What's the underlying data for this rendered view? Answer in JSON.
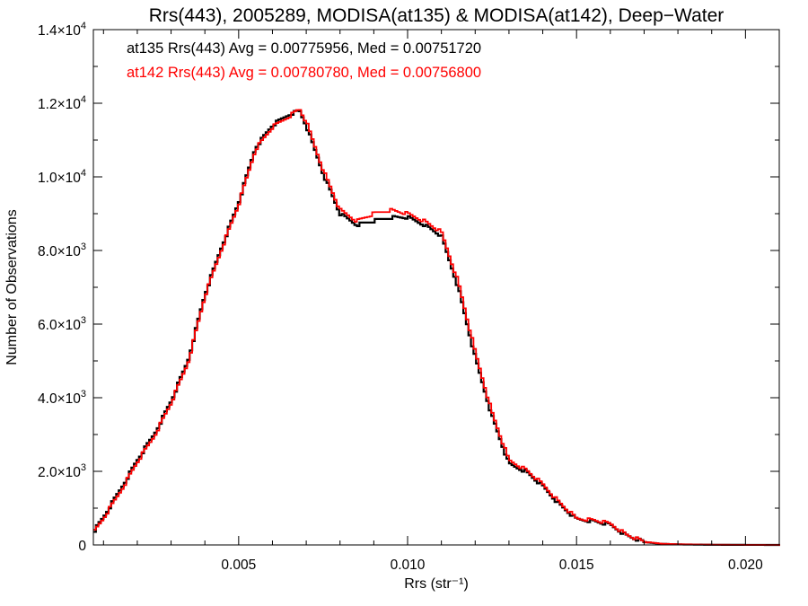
{
  "chart_data": {
    "type": "line",
    "title": "Rrs(443), 2005289, MODISA(at135) & MODISA(at142), Deep−Water",
    "xlabel": "Rrs (str⁻¹)",
    "ylabel": "Number of Observations",
    "xlim": [
      0.0007,
      0.021
    ],
    "ylim": [
      0,
      14000
    ],
    "x_ticks": [
      {
        "value": 0.005,
        "label": "0.005"
      },
      {
        "value": 0.01,
        "label": "0.010"
      },
      {
        "value": 0.015,
        "label": "0.015"
      },
      {
        "value": 0.02,
        "label": "0.020"
      }
    ],
    "y_ticks": [
      {
        "value": 0,
        "mant": "0",
        "exp": ""
      },
      {
        "value": 2000,
        "mant": "2.0×10",
        "exp": "3"
      },
      {
        "value": 4000,
        "mant": "4.0×10",
        "exp": "3"
      },
      {
        "value": 6000,
        "mant": "6.0×10",
        "exp": "3"
      },
      {
        "value": 8000,
        "mant": "8.0×10",
        "exp": "3"
      },
      {
        "value": 10000,
        "mant": "1.0×10",
        "exp": "4"
      },
      {
        "value": 12000,
        "mant": "1.2×10",
        "exp": "4"
      },
      {
        "value": 14000,
        "mant": "1.4×10",
        "exp": "4"
      }
    ],
    "x_minor_step": 0.001,
    "y_minor_step": 1000,
    "grid": false,
    "legend": "top-left",
    "annotations": [
      {
        "text": "at135 Rrs(443) Avg = 0.00775956, Med = 0.00751720",
        "color": "#000000"
      },
      {
        "text": "at142 Rrs(443) Avg = 0.00780780, Med = 0.00756800",
        "color": "#ff0000"
      }
    ],
    "series": [
      {
        "color": "#000000",
        "x": [
          0.0007,
          0.001,
          0.0015,
          0.002,
          0.0025,
          0.003,
          0.0035,
          0.004,
          0.0045,
          0.005,
          0.0055,
          0.006,
          0.0065,
          0.0068,
          0.007,
          0.0075,
          0.008,
          0.0085,
          0.009,
          0.0095,
          0.01,
          0.0105,
          0.011,
          0.0115,
          0.012,
          0.0125,
          0.013,
          0.0135,
          0.014,
          0.0145,
          0.015,
          0.0155,
          0.016,
          0.0165,
          0.017,
          0.0175,
          0.018,
          0.019,
          0.02,
          0.021
        ],
        "y": [
          350,
          750,
          1500,
          2300,
          3000,
          3900,
          5000,
          6800,
          8100,
          9300,
          10800,
          11400,
          11700,
          11800,
          11400,
          10100,
          9000,
          8700,
          8800,
          8900,
          8900,
          8700,
          8400,
          7000,
          5100,
          3500,
          2200,
          2000,
          1600,
          1100,
          700,
          650,
          550,
          250,
          80,
          30,
          15,
          5,
          2,
          0
        ]
      },
      {
        "color": "#ff0000",
        "x": [
          0.0007,
          0.001,
          0.0015,
          0.002,
          0.0025,
          0.003,
          0.0035,
          0.004,
          0.0045,
          0.005,
          0.0055,
          0.006,
          0.0065,
          0.0068,
          0.007,
          0.0075,
          0.008,
          0.0085,
          0.009,
          0.0095,
          0.01,
          0.0105,
          0.011,
          0.0115,
          0.012,
          0.0125,
          0.013,
          0.0135,
          0.014,
          0.0145,
          0.015,
          0.0155,
          0.016,
          0.0165,
          0.017,
          0.0175,
          0.018,
          0.019,
          0.02,
          0.021
        ],
        "y": [
          330,
          720,
          1450,
          2250,
          2950,
          3850,
          4950,
          6750,
          8050,
          9250,
          10750,
          11350,
          11650,
          11850,
          11500,
          10200,
          9100,
          8800,
          9000,
          9100,
          9000,
          8800,
          8500,
          7150,
          5250,
          3600,
          2300,
          2050,
          1650,
          1150,
          720,
          680,
          580,
          270,
          90,
          35,
          18,
          6,
          2,
          0
        ]
      }
    ]
  }
}
